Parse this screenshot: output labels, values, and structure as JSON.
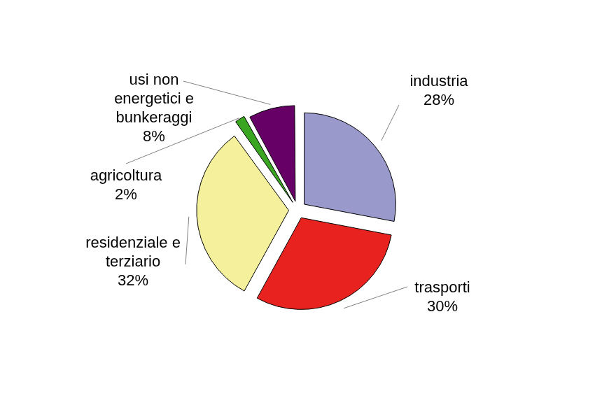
{
  "chart_data": {
    "type": "pie",
    "categories": [
      "industria",
      "trasporti",
      "residenziale e terziario",
      "agricoltura",
      "usi non energetici e bunkeraggi"
    ],
    "values": [
      28,
      30,
      32,
      2,
      8
    ],
    "value_labels": [
      "28%",
      "30%",
      "32%",
      "2%",
      "8%"
    ],
    "colors": [
      "#9999cc",
      "#e8231f",
      "#f4f09c",
      "#3aa521",
      "#660066"
    ],
    "data_labels": true
  }
}
